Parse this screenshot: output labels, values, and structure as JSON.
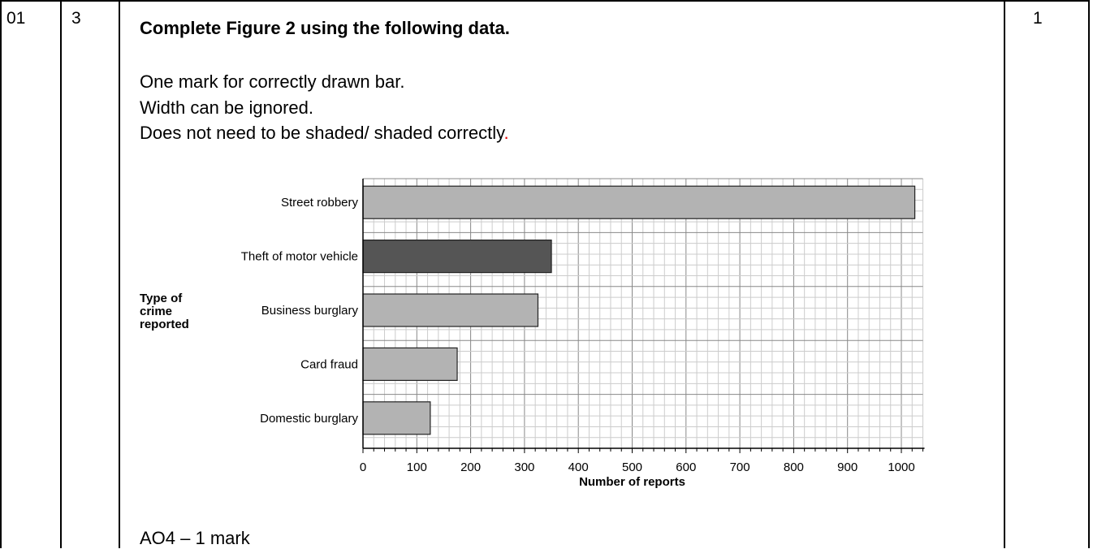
{
  "row": {
    "question": "01",
    "part": "3",
    "marks": "1"
  },
  "content": {
    "heading": "Complete Figure 2 using the following data.",
    "lines": [
      "One mark for correctly drawn bar.",
      "Width can be ignored.",
      "Does not need to be shaded/ shaded correctly"
    ],
    "red_period": ".",
    "ao": "AO4 – 1 mark"
  },
  "chart_data": {
    "type": "bar",
    "orientation": "horizontal",
    "categories": [
      "Street robbery",
      "Theft of motor vehicle",
      "Business burglary",
      "Card fraud",
      "Domestic burglary"
    ],
    "values": [
      1025,
      350,
      325,
      175,
      125
    ],
    "highlighted_category": "Theft of motor vehicle",
    "xlabel": "Number of reports",
    "ylabel_lines": [
      "Type of",
      "crime",
      "reported"
    ],
    "xticks": [
      0,
      100,
      200,
      300,
      400,
      500,
      600,
      700,
      800,
      900,
      1000
    ],
    "xlim": [
      0,
      1040
    ],
    "grid": true,
    "colors": {
      "bar": "#b3b3b3",
      "highlight": "#555555",
      "grid_minor": "#cccccc",
      "grid_major": "#888888"
    }
  }
}
